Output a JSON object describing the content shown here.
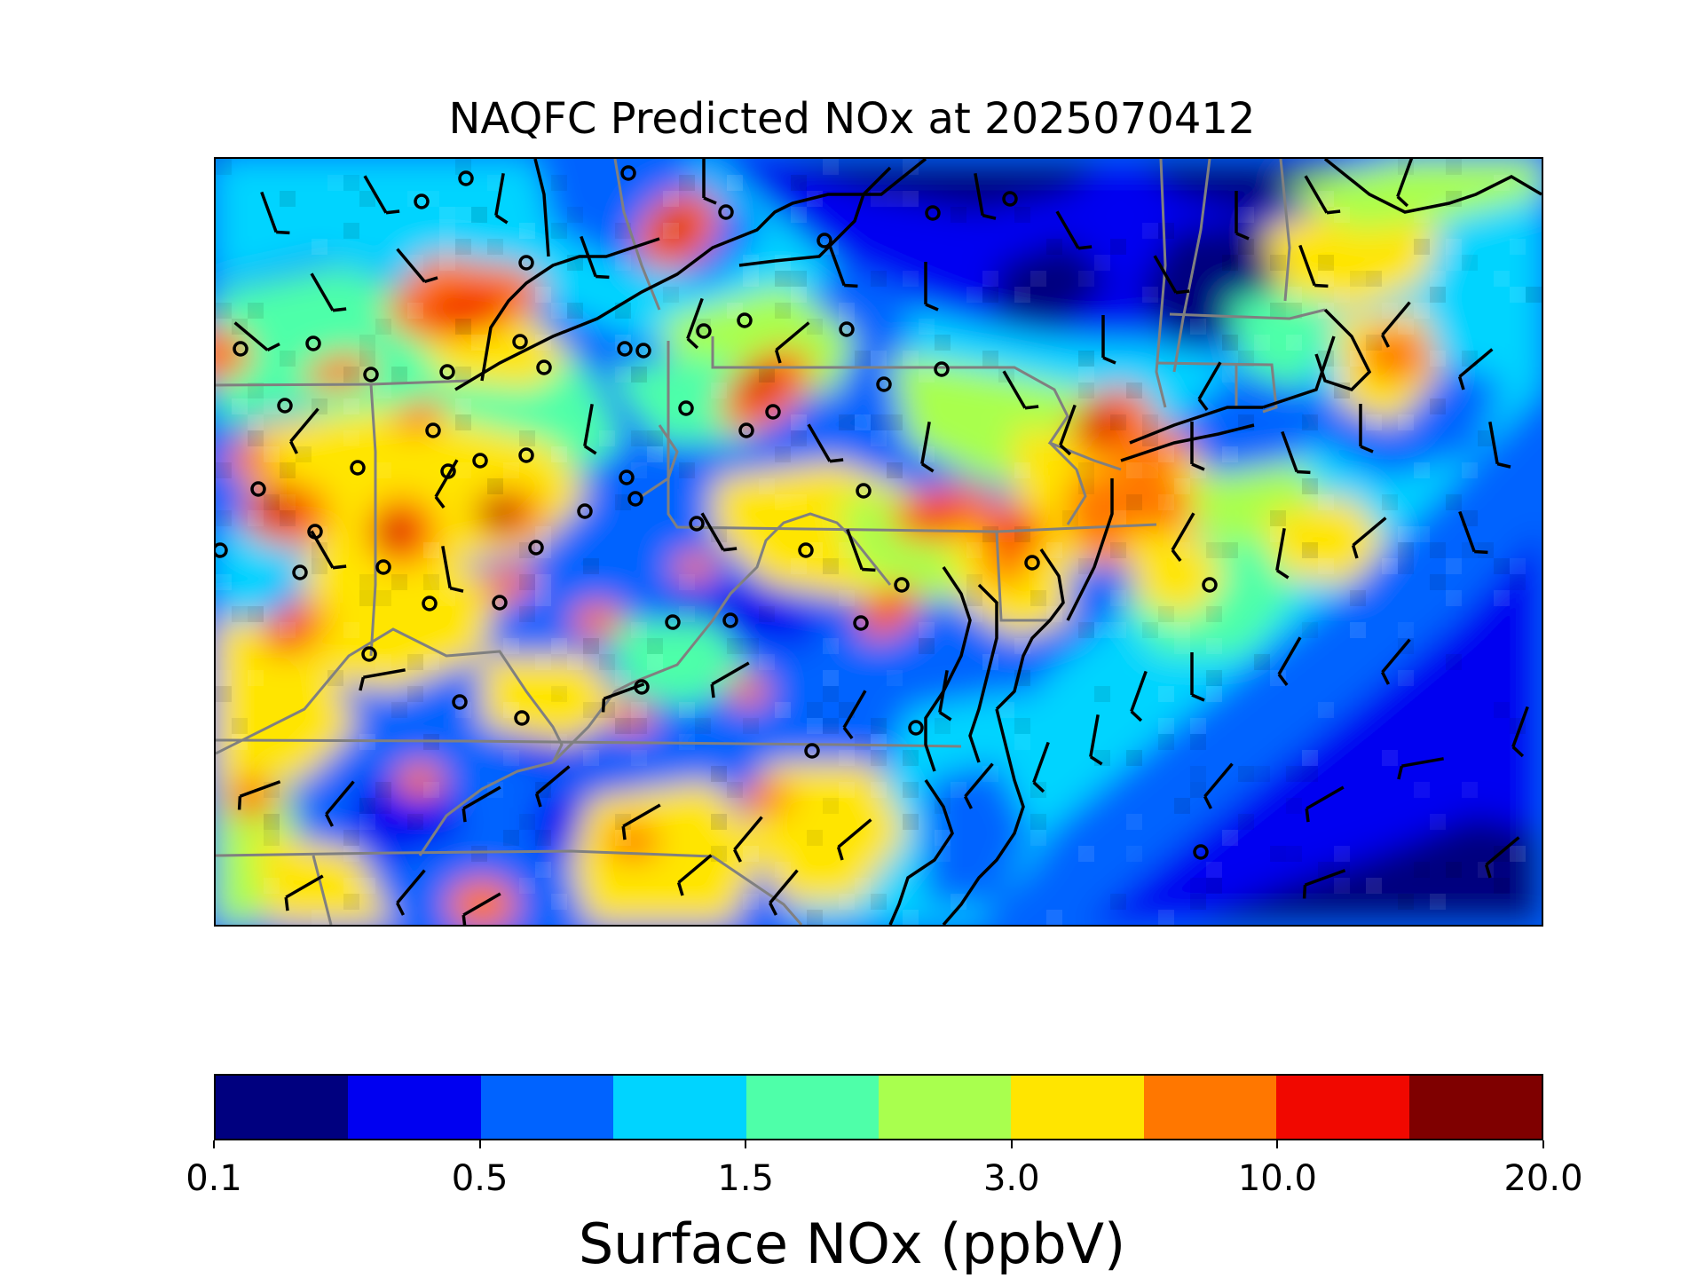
{
  "figure": {
    "title": "NAQFC Predicted NOx at 2025070412"
  },
  "legend": {
    "title": "Surface NOx (ppbV)",
    "colors": [
      "#00007f",
      "#0000f1",
      "#0063ff",
      "#00d4ff",
      "#4effa9",
      "#a9ff4e",
      "#ffe500",
      "#ff7700",
      "#f10800",
      "#7f0000"
    ],
    "tick_labels": [
      "0.1",
      "0.5",
      "1.5",
      "3.0",
      "10.0",
      "20.0"
    ]
  },
  "map": {
    "colors": {
      "background": "#0063ff",
      "state_border": "#808080",
      "coastline": "#000000",
      "wind_barb": "#000000",
      "station_marker": "#000000"
    },
    "icons": [
      "wind-barb-icon",
      "monitoring-station-icon"
    ]
  }
}
